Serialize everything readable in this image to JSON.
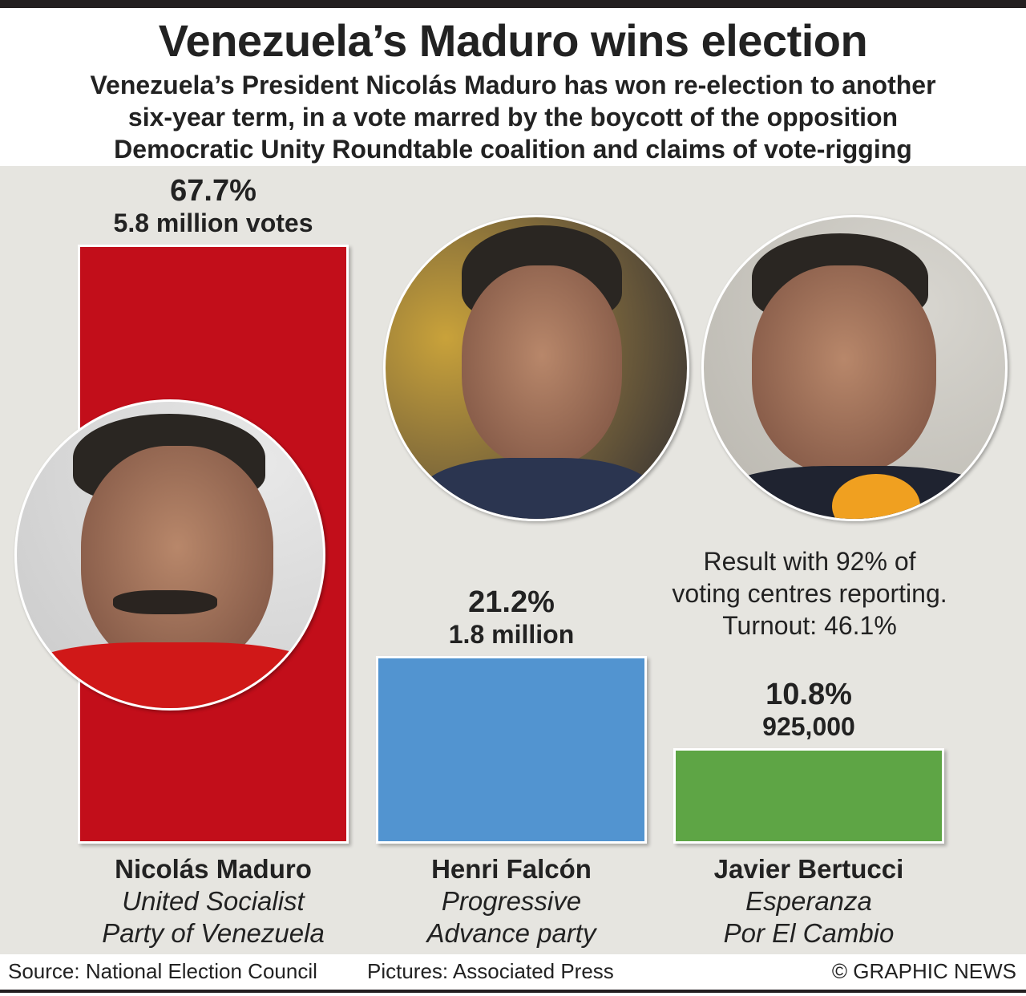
{
  "title": "Venezuela’s Maduro wins election",
  "subtitle": [
    "Venezuela’s President Nicolás Maduro has won re-election to another",
    "six-year term, in a vote marred by the boycott of the opposition",
    "Democratic Unity Roundtable coalition and claims of vote-rigging"
  ],
  "note": [
    "Result with 92% of",
    "voting centres reporting.",
    "Turnout: 46.1%"
  ],
  "footer": {
    "source": "Source: National Election Council",
    "pictures": "Pictures: Associated Press",
    "credit": "© GRAPHIC NEWS"
  },
  "chart_data": {
    "type": "bar",
    "title": "Venezuela’s Maduro wins election",
    "categories": [
      "Nicolás Maduro",
      "Henri Falcón",
      "Javier Bertucci"
    ],
    "values": [
      67.7,
      21.2,
      10.8
    ],
    "unit": "%",
    "ylim": [
      0,
      67.7
    ],
    "colors": [
      "#c20e1a",
      "#5294d0",
      "#5ea545"
    ],
    "pct_labels": [
      "67.7%",
      "21.2%",
      "10.8%"
    ],
    "vote_labels": [
      "5.8 million votes",
      "1.8 million",
      "925,000"
    ],
    "parties": [
      [
        "United Socialist",
        "Party of Venezuela"
      ],
      [
        "Progressive",
        "Advance party"
      ],
      [
        "Esperanza",
        "Por El Cambio"
      ]
    ]
  }
}
